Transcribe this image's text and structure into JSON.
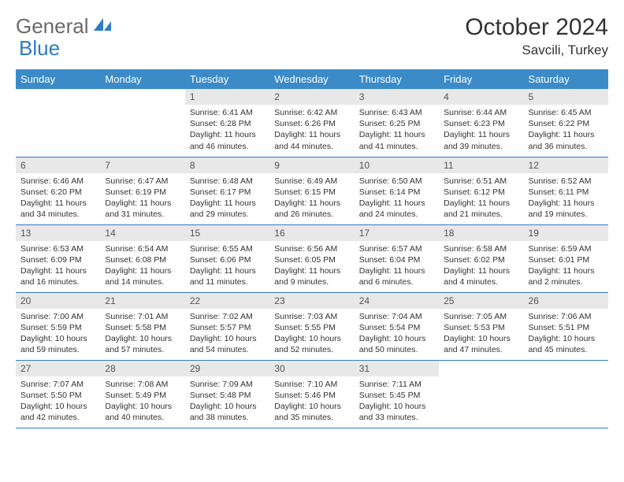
{
  "brand": {
    "word1": "General",
    "word2": "Blue",
    "logo_color": "#2e7cc2",
    "text_color": "#6a6a6a"
  },
  "title": "October 2024",
  "location": "Savcili, Turkey",
  "header_bg": "#3b8bc9",
  "header_fg": "#ffffff",
  "daynum_bg": "#e8e8e8",
  "border_color": "#2e7cc2",
  "weekdays": [
    "Sunday",
    "Monday",
    "Tuesday",
    "Wednesday",
    "Thursday",
    "Friday",
    "Saturday"
  ],
  "weeks": [
    [
      null,
      null,
      {
        "n": "1",
        "sr": "Sunrise: 6:41 AM",
        "ss": "Sunset: 6:28 PM",
        "d1": "Daylight: 11 hours",
        "d2": "and 46 minutes."
      },
      {
        "n": "2",
        "sr": "Sunrise: 6:42 AM",
        "ss": "Sunset: 6:26 PM",
        "d1": "Daylight: 11 hours",
        "d2": "and 44 minutes."
      },
      {
        "n": "3",
        "sr": "Sunrise: 6:43 AM",
        "ss": "Sunset: 6:25 PM",
        "d1": "Daylight: 11 hours",
        "d2": "and 41 minutes."
      },
      {
        "n": "4",
        "sr": "Sunrise: 6:44 AM",
        "ss": "Sunset: 6:23 PM",
        "d1": "Daylight: 11 hours",
        "d2": "and 39 minutes."
      },
      {
        "n": "5",
        "sr": "Sunrise: 6:45 AM",
        "ss": "Sunset: 6:22 PM",
        "d1": "Daylight: 11 hours",
        "d2": "and 36 minutes."
      }
    ],
    [
      {
        "n": "6",
        "sr": "Sunrise: 6:46 AM",
        "ss": "Sunset: 6:20 PM",
        "d1": "Daylight: 11 hours",
        "d2": "and 34 minutes."
      },
      {
        "n": "7",
        "sr": "Sunrise: 6:47 AM",
        "ss": "Sunset: 6:19 PM",
        "d1": "Daylight: 11 hours",
        "d2": "and 31 minutes."
      },
      {
        "n": "8",
        "sr": "Sunrise: 6:48 AM",
        "ss": "Sunset: 6:17 PM",
        "d1": "Daylight: 11 hours",
        "d2": "and 29 minutes."
      },
      {
        "n": "9",
        "sr": "Sunrise: 6:49 AM",
        "ss": "Sunset: 6:15 PM",
        "d1": "Daylight: 11 hours",
        "d2": "and 26 minutes."
      },
      {
        "n": "10",
        "sr": "Sunrise: 6:50 AM",
        "ss": "Sunset: 6:14 PM",
        "d1": "Daylight: 11 hours",
        "d2": "and 24 minutes."
      },
      {
        "n": "11",
        "sr": "Sunrise: 6:51 AM",
        "ss": "Sunset: 6:12 PM",
        "d1": "Daylight: 11 hours",
        "d2": "and 21 minutes."
      },
      {
        "n": "12",
        "sr": "Sunrise: 6:52 AM",
        "ss": "Sunset: 6:11 PM",
        "d1": "Daylight: 11 hours",
        "d2": "and 19 minutes."
      }
    ],
    [
      {
        "n": "13",
        "sr": "Sunrise: 6:53 AM",
        "ss": "Sunset: 6:09 PM",
        "d1": "Daylight: 11 hours",
        "d2": "and 16 minutes."
      },
      {
        "n": "14",
        "sr": "Sunrise: 6:54 AM",
        "ss": "Sunset: 6:08 PM",
        "d1": "Daylight: 11 hours",
        "d2": "and 14 minutes."
      },
      {
        "n": "15",
        "sr": "Sunrise: 6:55 AM",
        "ss": "Sunset: 6:06 PM",
        "d1": "Daylight: 11 hours",
        "d2": "and 11 minutes."
      },
      {
        "n": "16",
        "sr": "Sunrise: 6:56 AM",
        "ss": "Sunset: 6:05 PM",
        "d1": "Daylight: 11 hours",
        "d2": "and 9 minutes."
      },
      {
        "n": "17",
        "sr": "Sunrise: 6:57 AM",
        "ss": "Sunset: 6:04 PM",
        "d1": "Daylight: 11 hours",
        "d2": "and 6 minutes."
      },
      {
        "n": "18",
        "sr": "Sunrise: 6:58 AM",
        "ss": "Sunset: 6:02 PM",
        "d1": "Daylight: 11 hours",
        "d2": "and 4 minutes."
      },
      {
        "n": "19",
        "sr": "Sunrise: 6:59 AM",
        "ss": "Sunset: 6:01 PM",
        "d1": "Daylight: 11 hours",
        "d2": "and 2 minutes."
      }
    ],
    [
      {
        "n": "20",
        "sr": "Sunrise: 7:00 AM",
        "ss": "Sunset: 5:59 PM",
        "d1": "Daylight: 10 hours",
        "d2": "and 59 minutes."
      },
      {
        "n": "21",
        "sr": "Sunrise: 7:01 AM",
        "ss": "Sunset: 5:58 PM",
        "d1": "Daylight: 10 hours",
        "d2": "and 57 minutes."
      },
      {
        "n": "22",
        "sr": "Sunrise: 7:02 AM",
        "ss": "Sunset: 5:57 PM",
        "d1": "Daylight: 10 hours",
        "d2": "and 54 minutes."
      },
      {
        "n": "23",
        "sr": "Sunrise: 7:03 AM",
        "ss": "Sunset: 5:55 PM",
        "d1": "Daylight: 10 hours",
        "d2": "and 52 minutes."
      },
      {
        "n": "24",
        "sr": "Sunrise: 7:04 AM",
        "ss": "Sunset: 5:54 PM",
        "d1": "Daylight: 10 hours",
        "d2": "and 50 minutes."
      },
      {
        "n": "25",
        "sr": "Sunrise: 7:05 AM",
        "ss": "Sunset: 5:53 PM",
        "d1": "Daylight: 10 hours",
        "d2": "and 47 minutes."
      },
      {
        "n": "26",
        "sr": "Sunrise: 7:06 AM",
        "ss": "Sunset: 5:51 PM",
        "d1": "Daylight: 10 hours",
        "d2": "and 45 minutes."
      }
    ],
    [
      {
        "n": "27",
        "sr": "Sunrise: 7:07 AM",
        "ss": "Sunset: 5:50 PM",
        "d1": "Daylight: 10 hours",
        "d2": "and 42 minutes."
      },
      {
        "n": "28",
        "sr": "Sunrise: 7:08 AM",
        "ss": "Sunset: 5:49 PM",
        "d1": "Daylight: 10 hours",
        "d2": "and 40 minutes."
      },
      {
        "n": "29",
        "sr": "Sunrise: 7:09 AM",
        "ss": "Sunset: 5:48 PM",
        "d1": "Daylight: 10 hours",
        "d2": "and 38 minutes."
      },
      {
        "n": "30",
        "sr": "Sunrise: 7:10 AM",
        "ss": "Sunset: 5:46 PM",
        "d1": "Daylight: 10 hours",
        "d2": "and 35 minutes."
      },
      {
        "n": "31",
        "sr": "Sunrise: 7:11 AM",
        "ss": "Sunset: 5:45 PM",
        "d1": "Daylight: 10 hours",
        "d2": "and 33 minutes."
      },
      null,
      null
    ]
  ]
}
